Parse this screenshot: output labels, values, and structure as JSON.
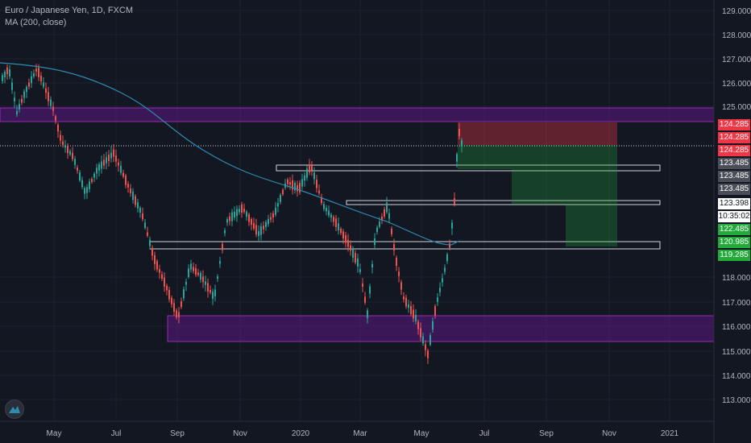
{
  "header": {
    "symbol_line": "Euro / Japanese Yen, 1D, FXCM",
    "indicator_line": "MA (200, close)"
  },
  "price_axis": {
    "ticks": [
      "129.000",
      "128.000",
      "127.000",
      "126.000",
      "125.000",
      "118.000",
      "117.000",
      "116.000",
      "115.000",
      "114.000",
      "113.000"
    ]
  },
  "time_axis": {
    "labels": [
      "May",
      "Jul",
      "Sep",
      "Nov",
      "2020",
      "Mar",
      "May",
      "Jul",
      "Sep",
      "Nov",
      "2021"
    ]
  },
  "price_tags": [
    {
      "text": "124.285",
      "bg": "#f23645",
      "fg": "#ffffff"
    },
    {
      "text": "124.285",
      "bg": "#f23645",
      "fg": "#ffffff"
    },
    {
      "text": "124.285",
      "bg": "#f23645",
      "fg": "#ffffff"
    },
    {
      "text": "123.485",
      "bg": "#4a4e59",
      "fg": "#ffffff"
    },
    {
      "text": "123.485",
      "bg": "#4a4e59",
      "fg": "#ffffff"
    },
    {
      "text": "123.485",
      "bg": "#4a4e59",
      "fg": "#ffffff"
    },
    {
      "text": "123.398",
      "bg": "#ffffff",
      "fg": "#131722"
    },
    {
      "text": "10:35:02",
      "bg": "#ffffff",
      "fg": "#131722"
    },
    {
      "text": "122.485",
      "bg": "#22ab3a",
      "fg": "#ffffff"
    },
    {
      "text": "120.985",
      "bg": "#22ab3a",
      "fg": "#ffffff"
    },
    {
      "text": "119.285",
      "bg": "#22ab3a",
      "fg": "#ffffff"
    }
  ],
  "colors": {
    "background": "#131722",
    "up": "#26a69a",
    "down": "#ef5350",
    "ma": "#2e8bb0",
    "zone": "#6a1b9a",
    "stop_zone": "#f23645",
    "target_zone": "#22ab3a"
  },
  "icons": {
    "logo": "tradingview-logo-icon"
  }
}
